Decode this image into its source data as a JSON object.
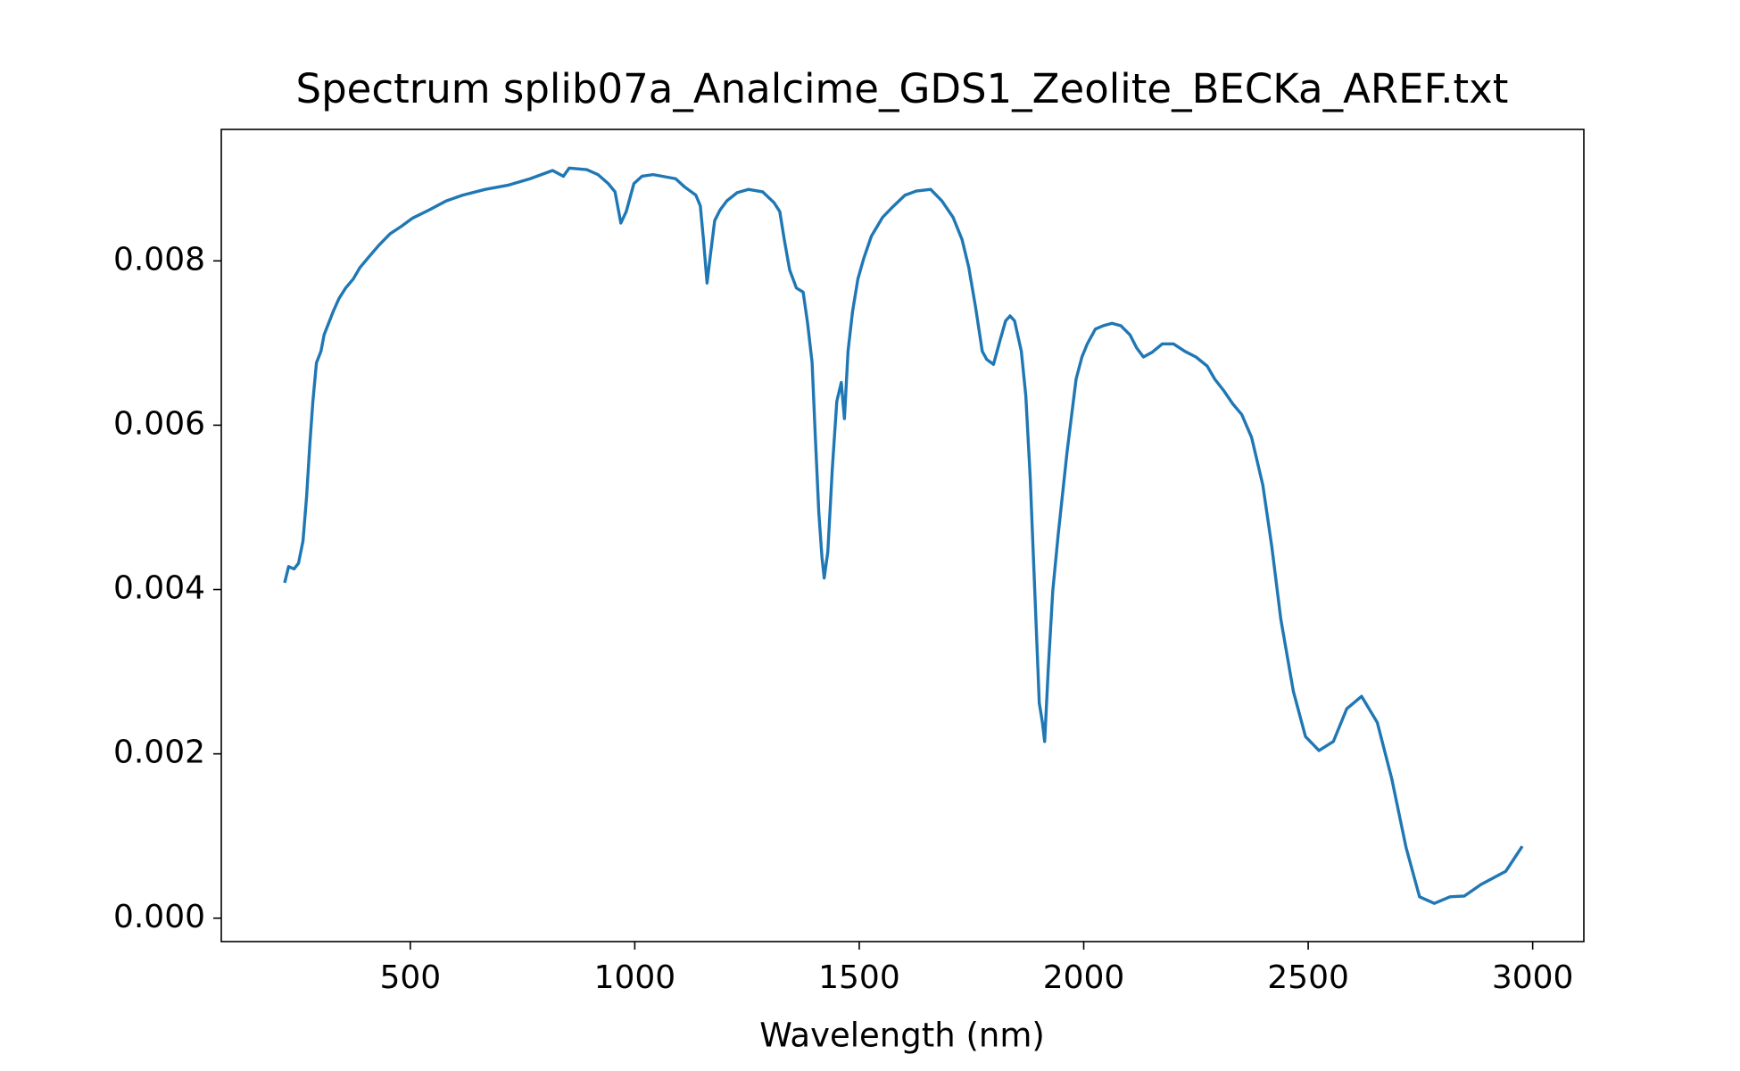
{
  "chart_data": {
    "type": "line",
    "title": "Spectrum splib07a_Analcime_GDS1_Zeolite_BECKa_AREF.txt",
    "xlabel": "Wavelength (nm)",
    "color": "#1f77b4",
    "x": [
      221,
      229,
      241,
      251,
      261,
      269,
      276,
      283,
      291,
      301,
      308,
      318,
      328,
      341,
      356,
      373,
      388,
      408,
      430,
      455,
      480,
      505,
      542,
      580,
      617,
      667,
      717,
      767,
      817,
      841,
      854,
      893,
      918,
      941,
      956,
      969,
      981,
      998,
      1016,
      1041,
      1091,
      1111,
      1136,
      1146,
      1153,
      1161,
      1168,
      1178,
      1190,
      1205,
      1228,
      1253,
      1285,
      1310,
      1323,
      1333,
      1345,
      1360,
      1375,
      1385,
      1395,
      1402,
      1410,
      1417,
      1422,
      1430,
      1440,
      1450,
      1460,
      1467,
      1475,
      1485,
      1497,
      1510,
      1527,
      1552,
      1577,
      1602,
      1627,
      1659,
      1684,
      1709,
      1729,
      1744,
      1759,
      1774,
      1784,
      1799,
      1814,
      1826,
      1836,
      1846,
      1861,
      1871,
      1881,
      1891,
      1901,
      1908,
      1913,
      1921,
      1931,
      1943,
      1963,
      1983,
      1996,
      2008,
      2026,
      2043,
      2063,
      2083,
      2103,
      2118,
      2133,
      2153,
      2175,
      2200,
      2225,
      2250,
      2275,
      2292,
      2312,
      2332,
      2352,
      2374,
      2399,
      2419,
      2439,
      2467,
      2494,
      2524,
      2556,
      2586,
      2619,
      2654,
      2686,
      2718,
      2748,
      2781,
      2816,
      2848,
      2885,
      2940,
      2975
    ],
    "values": [
      0.0041,
      0.00428,
      0.00425,
      0.00432,
      0.00459,
      0.00513,
      0.00575,
      0.00629,
      0.00676,
      0.0069,
      0.0071,
      0.00724,
      0.00738,
      0.00754,
      0.00767,
      0.00778,
      0.00792,
      0.00805,
      0.00819,
      0.00833,
      0.00842,
      0.00852,
      0.00862,
      0.00873,
      0.0088,
      0.00887,
      0.00892,
      0.009,
      0.0091,
      0.00903,
      0.00913,
      0.00911,
      0.00905,
      0.00894,
      0.00884,
      0.00846,
      0.0086,
      0.00894,
      0.00903,
      0.00905,
      0.009,
      0.0089,
      0.0088,
      0.00867,
      0.00826,
      0.00773,
      0.00805,
      0.00849,
      0.00862,
      0.00873,
      0.00883,
      0.00887,
      0.00884,
      0.00871,
      0.0086,
      0.00826,
      0.00789,
      0.00767,
      0.00762,
      0.00724,
      0.00676,
      0.00588,
      0.00493,
      0.00439,
      0.00414,
      0.00446,
      0.00547,
      0.00629,
      0.00652,
      0.00608,
      0.0069,
      0.00738,
      0.00778,
      0.00803,
      0.0083,
      0.00853,
      0.00867,
      0.0088,
      0.00885,
      0.00887,
      0.00873,
      0.00853,
      0.00826,
      0.00792,
      0.00744,
      0.0069,
      0.0068,
      0.00674,
      0.00704,
      0.00727,
      0.00733,
      0.00727,
      0.0069,
      0.00636,
      0.00534,
      0.00398,
      0.00262,
      0.00238,
      0.00215,
      0.00303,
      0.00398,
      0.00466,
      0.00568,
      0.00656,
      0.00683,
      0.00699,
      0.00717,
      0.00721,
      0.00724,
      0.00721,
      0.0071,
      0.00694,
      0.00683,
      0.00689,
      0.00699,
      0.00699,
      0.0069,
      0.00683,
      0.00672,
      0.00656,
      0.00642,
      0.00626,
      0.00613,
      0.00585,
      0.00527,
      0.00452,
      0.00364,
      0.00276,
      0.00221,
      0.00204,
      0.00215,
      0.00255,
      0.0027,
      0.00238,
      0.0017,
      0.00086,
      0.00026,
      0.00018,
      0.00026,
      0.00027,
      0.00041,
      0.00057,
      0.00086
    ],
    "xlim": [
      79,
      3114
    ],
    "ylim": [
      -0.000285,
      0.0096
    ],
    "xticks": [
      500,
      1000,
      1500,
      2000,
      2500,
      3000
    ],
    "yticks": [
      {
        "value": 0,
        "label": "0.000"
      },
      0.002,
      0.004,
      0.006,
      0.008
    ]
  }
}
